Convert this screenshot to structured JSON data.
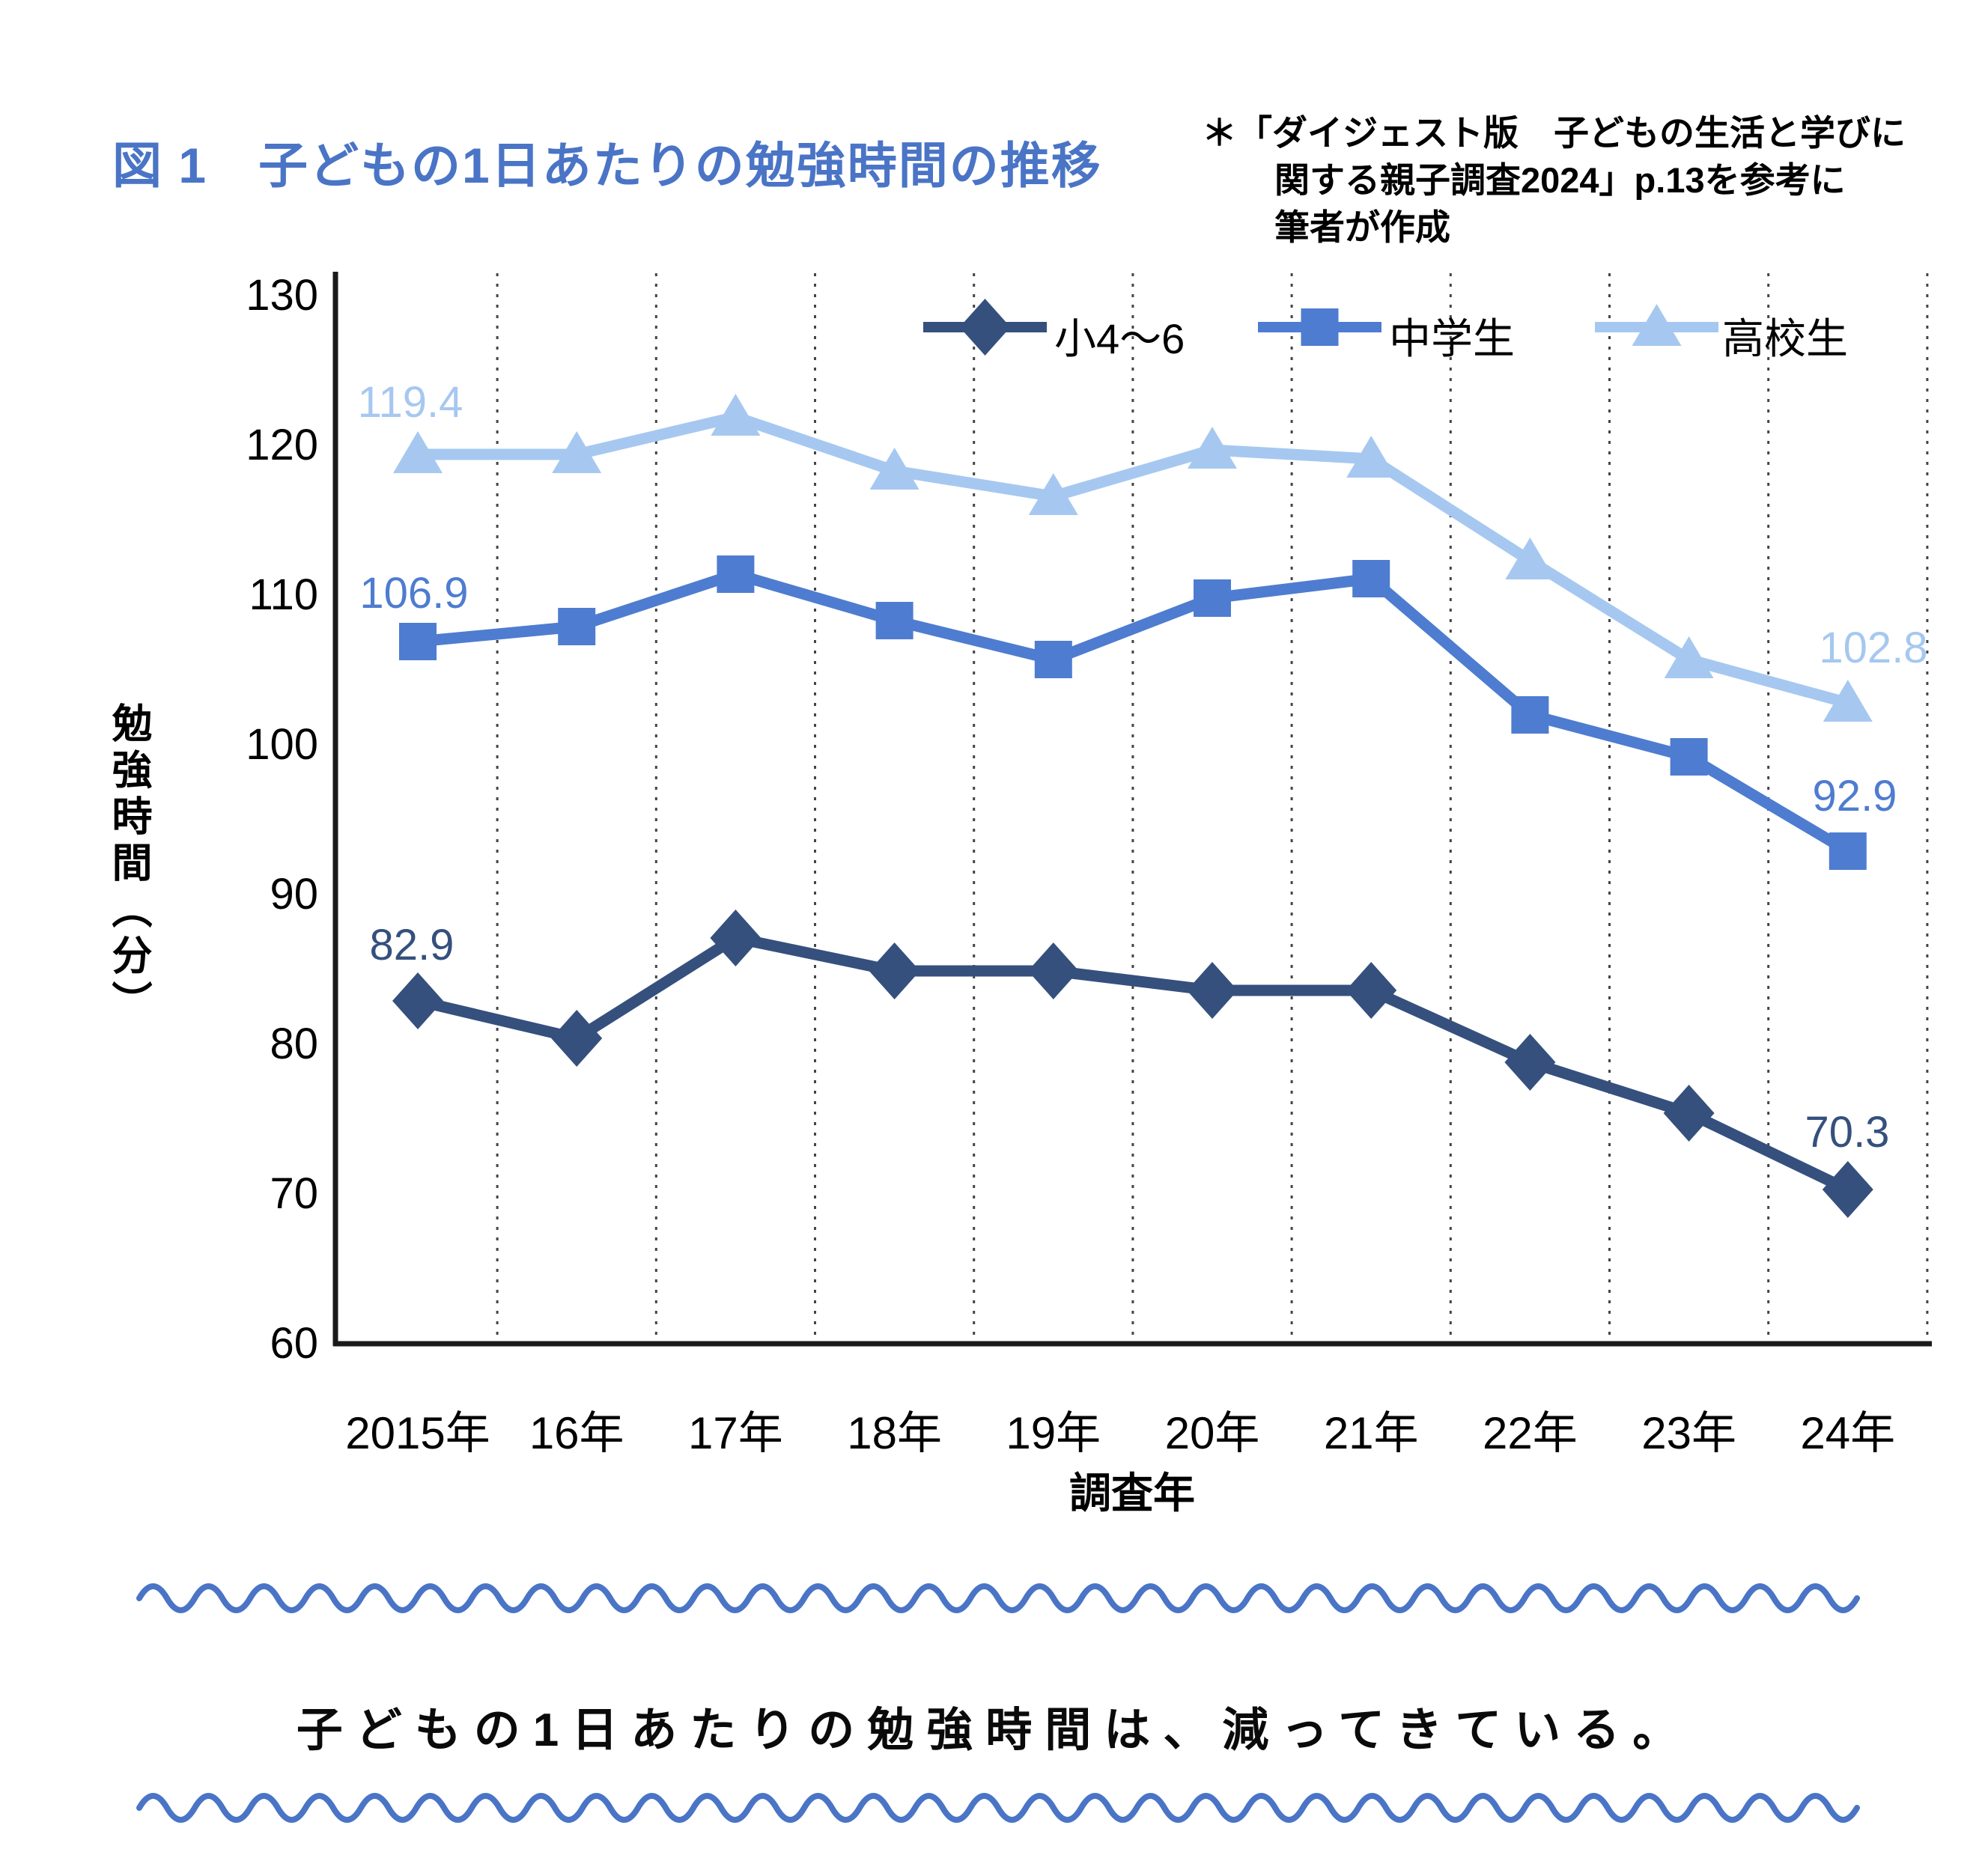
{
  "figure": {
    "title": "図 1　子どもの1日あたりの勉強時間の推移",
    "source_note_lines": [
      "＊「ダイジェスト版　子どもの生活と学びに",
      "関する親子調査2024」p.13を参考に",
      "筆者が作成"
    ],
    "takeaway": "子どもの1日あたりの勉強時間は、減ってきている。"
  },
  "chart_data": {
    "type": "line",
    "title": "図 1　子どもの1日あたりの勉強時間の推移",
    "xlabel": "調査年",
    "ylabel": "勉強時間（分）",
    "ylim": [
      60,
      130
    ],
    "yticks": [
      130,
      120,
      110,
      100,
      90,
      80,
      70,
      60
    ],
    "grid": "vertical dotted gridlines between categories",
    "legend_position": "top inside plot, horizontal",
    "categories": [
      "2015年",
      "16年",
      "17年",
      "18年",
      "19年",
      "20年",
      "21年",
      "22年",
      "23年",
      "24年"
    ],
    "series": [
      {
        "name": "小4〜6",
        "marker": "diamond",
        "color": "#35507D",
        "values": [
          82.9,
          80.4,
          87.1,
          84.9,
          84.9,
          83.6,
          83.6,
          78.8,
          75.4,
          70.3
        ],
        "labels": {
          "first": "82.9",
          "last": "70.3"
        }
      },
      {
        "name": "中学生",
        "marker": "square",
        "color": "#4E7CD0",
        "values": [
          106.9,
          107.9,
          111.4,
          108.3,
          105.7,
          109.8,
          111.1,
          102.0,
          99.2,
          92.9
        ],
        "labels": {
          "first": "106.9",
          "last": "92.9"
        }
      },
      {
        "name": "高校生",
        "marker": "triangle",
        "color": "#A6C8F0",
        "values": [
          119.4,
          119.4,
          121.9,
          118.3,
          116.6,
          119.7,
          119.1,
          112.3,
          105.7,
          102.8
        ],
        "labels": {
          "first": "119.4",
          "last": "102.8"
        }
      }
    ],
    "annotations": "Only the first (2015年) and last (24年) points of each series carry data labels."
  },
  "colors": {
    "title_accent": "#4A74C6",
    "wavy_line": "#4A74C6",
    "axis": "#1a1a1a",
    "gridline": "#444444",
    "series_elementary": "#35507D",
    "series_junior_high": "#4E7CD0",
    "series_high_school": "#A6C8F0"
  }
}
